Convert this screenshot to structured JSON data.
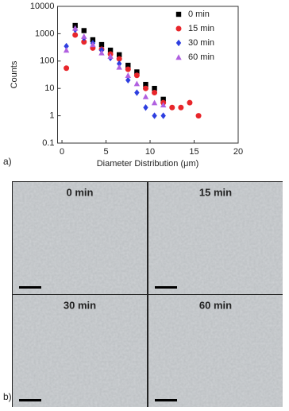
{
  "chart_data": {
    "type": "scatter",
    "y_label": "Counts",
    "x_label": "Diameter Distribution (μm)",
    "xlim": [
      -0.5,
      20
    ],
    "xticks": [
      0,
      5,
      10,
      15,
      20
    ],
    "ylim": [
      0.1,
      10000
    ],
    "yticks": [
      0.1,
      1,
      10,
      100,
      1000,
      10000
    ],
    "log_y": true,
    "legend": "upper right",
    "series": [
      {
        "name": "0 min",
        "color": "#000000",
        "marker": "square",
        "x": [
          1.5,
          2.5,
          3.5,
          4.5,
          5.5,
          6.5,
          7.5,
          8.5,
          9.5,
          10.5,
          11.5
        ],
        "values": [
          2000,
          1300,
          600,
          400,
          250,
          170,
          70,
          40,
          14,
          10,
          4
        ]
      },
      {
        "name": "15 min",
        "color": "#e8262b",
        "marker": "circle",
        "x": [
          0.5,
          1.5,
          2.5,
          3.5,
          4.5,
          5.5,
          6.5,
          7.5,
          8.5,
          9.5,
          10.5,
          11.5,
          12.5,
          13.5,
          14.5,
          15.5
        ],
        "values": [
          55,
          900,
          500,
          300,
          270,
          180,
          120,
          50,
          30,
          10,
          7,
          3,
          2,
          2,
          3,
          1
        ]
      },
      {
        "name": "30 min",
        "color": "#2e3fe0",
        "marker": "diamond",
        "x": [
          0.5,
          1.5,
          2.5,
          3.5,
          4.5,
          5.5,
          6.5,
          7.5,
          8.5,
          9.5,
          10.5,
          11.5
        ],
        "values": [
          350,
          1400,
          700,
          450,
          250,
          130,
          80,
          20,
          7,
          2,
          1,
          1
        ]
      },
      {
        "name": "60 min",
        "color": "#b060e0",
        "marker": "triangle",
        "x": [
          0.5,
          1.5,
          2.5,
          3.5,
          4.5,
          5.5,
          6.5,
          7.5,
          8.5,
          9.5,
          10.5,
          11.5
        ],
        "values": [
          250,
          1600,
          800,
          400,
          200,
          150,
          60,
          30,
          15,
          5,
          3,
          2.5
        ]
      }
    ]
  },
  "panel_labels": [
    "a)",
    "b)"
  ],
  "micrographs": [
    {
      "label": "0 min"
    },
    {
      "label": "15 min"
    },
    {
      "label": "30 min"
    },
    {
      "label": "60 min"
    }
  ]
}
